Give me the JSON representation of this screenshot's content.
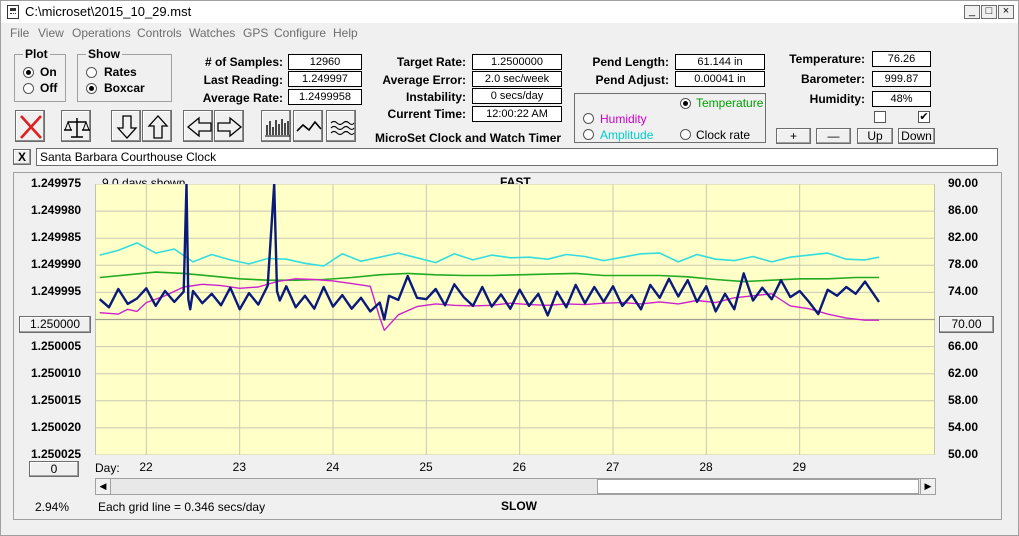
{
  "window": {
    "title": "C:\\microset\\2015_10_29.mst",
    "minimize": "_",
    "maximize": "□",
    "close": "×"
  },
  "menu": [
    "File",
    "View",
    "Operations",
    "Controls",
    "Watches",
    "GPS",
    "Configure",
    "Help"
  ],
  "plot_group": {
    "title": "Plot",
    "options": [
      {
        "label": "On",
        "selected": true
      },
      {
        "label": "Off",
        "selected": false
      }
    ]
  },
  "show_group": {
    "title": "Show",
    "options": [
      {
        "label": "Rates",
        "selected": false
      },
      {
        "label": "Boxcar",
        "selected": true
      }
    ]
  },
  "stats": {
    "samples_label": "# of Samples:",
    "samples": "12960",
    "last_reading_label": "Last Reading:",
    "last_reading": "1.249997",
    "average_rate_label": "Average Rate:",
    "average_rate": "1.2499958",
    "target_rate_label": "Target Rate:",
    "target_rate": "1.2500000",
    "average_error_label": "Average Error:",
    "average_error": "2.0 sec/week",
    "instability_label": "Instability:",
    "instability": "0 secs/day",
    "current_time_label": "Current Time:",
    "current_time": "12:00:22 AM",
    "pend_length_label": "Pend Length:",
    "pend_length": "61.144 in",
    "pend_adjust_label": "Pend Adjust:",
    "pend_adjust": "0.00041 in",
    "temperature_label": "Temperature:",
    "temperature": "76.26",
    "barometer_label": "Barometer:",
    "barometer": "999.87",
    "humidity_label": "Humidity:",
    "humidity": "48%"
  },
  "subtitle": "MicroSet Clock and Watch Timer",
  "series_select": {
    "temperature": {
      "label": "Temperature",
      "selected": true,
      "color": "#00a000"
    },
    "humidity": {
      "label": "Humidity",
      "selected": false,
      "color": "#cc00cc"
    },
    "amplitude": {
      "label": "Amplitude",
      "selected": false,
      "color": "#00cccc"
    },
    "clock_rate": {
      "label": "Clock rate",
      "selected": false,
      "color": "#000000"
    }
  },
  "scale_buttons": {
    "plus": "+",
    "minus": "—",
    "up": "Up",
    "down": "Down"
  },
  "checkboxes": [
    {
      "checked": false
    },
    {
      "checked": true
    }
  ],
  "clock_name_close": "X",
  "clock_name": "Santa Barbara Courthouse Clock",
  "chart_header": {
    "days_shown": "9.0 days shown",
    "fast": "FAST",
    "slow": "SLOW",
    "grid_note": "Each grid line = 0.346 secs/day",
    "percent": "2.94%",
    "day_label": "Day:"
  },
  "left_center_value": "1.250000",
  "right_center_value": "70.00",
  "bottom_left_value": "0",
  "chart_data": {
    "type": "line",
    "x_range": [
      21.45,
      30.45
    ],
    "x_ticks": [
      "22",
      "23",
      "24",
      "25",
      "26",
      "27",
      "28",
      "29"
    ],
    "x_tick_values": [
      22,
      23,
      24,
      25,
      26,
      27,
      28,
      29
    ],
    "y_left_ticks": [
      "1.249975",
      "1.249980",
      "1.249985",
      "1.249990",
      "1.249995",
      "1.250000",
      "1.250005",
      "1.250010",
      "1.250015",
      "1.250020",
      "1.250025"
    ],
    "y_left_range": [
      1.249975,
      1.250025
    ],
    "y_right_ticks": [
      "90.00",
      "86.00",
      "82.00",
      "78.00",
      "74.00",
      "70.00",
      "66.00",
      "62.00",
      "58.00",
      "54.00",
      "50.00"
    ],
    "y_right_range": [
      50,
      90
    ],
    "grid": true,
    "background": "#ffffc8",
    "series": [
      {
        "key": "amplitude",
        "color": "#33dddd",
        "axis": "right",
        "width": 1.6,
        "x": [
          21.5,
          21.7,
          21.9,
          22.1,
          22.3,
          22.5,
          22.7,
          22.9,
          23.1,
          23.3,
          23.5,
          23.7,
          23.9,
          24.1,
          24.3,
          24.5,
          24.7,
          24.9,
          25.1,
          25.3,
          25.5,
          25.7,
          25.9,
          26.1,
          26.3,
          26.5,
          26.7,
          26.9,
          27.1,
          27.3,
          27.5,
          27.7,
          27.9,
          28.1,
          28.3,
          28.5,
          28.7,
          28.9,
          29.1,
          29.3,
          29.5,
          29.7,
          29.85
        ],
        "y": [
          79.5,
          80.2,
          81.3,
          79.8,
          80.4,
          78.5,
          79.6,
          78.8,
          78.2,
          79.0,
          78.9,
          78.3,
          77.9,
          79.7,
          78.6,
          79.2,
          79.8,
          79.1,
          78.4,
          79.7,
          78.8,
          79.5,
          79.1,
          79.2,
          78.9,
          79.6,
          79.3,
          78.7,
          79.2,
          79.7,
          79.8,
          78.5,
          79.6,
          78.9,
          78.7,
          79.3,
          78.5,
          79.2,
          79.5,
          79.8,
          78.9,
          78.8,
          79.2
        ]
      },
      {
        "key": "temperature",
        "color": "#22aa22",
        "axis": "right",
        "width": 1.6,
        "x": [
          21.5,
          21.8,
          22.1,
          22.4,
          22.7,
          23.0,
          23.3,
          23.6,
          23.9,
          24.2,
          24.5,
          24.8,
          25.1,
          25.4,
          25.7,
          26.0,
          26.3,
          26.6,
          26.9,
          27.2,
          27.5,
          27.8,
          28.1,
          28.4,
          28.7,
          29.0,
          29.3,
          29.6,
          29.85
        ],
        "y": [
          76.2,
          76.6,
          77.0,
          76.8,
          76.4,
          76.0,
          75.8,
          75.8,
          75.9,
          76.2,
          76.6,
          76.8,
          76.6,
          76.5,
          76.5,
          76.6,
          76.7,
          76.8,
          76.5,
          76.5,
          76.5,
          76.3,
          75.9,
          75.6,
          75.8,
          76.0,
          76.0,
          76.2,
          76.2
        ]
      },
      {
        "key": "humidity",
        "color": "#cc22cc",
        "axis": "right",
        "width": 1.4,
        "x": [
          21.5,
          21.7,
          21.8,
          21.9,
          22.0,
          22.2,
          22.4,
          22.6,
          22.8,
          23.0,
          23.2,
          23.4,
          23.6,
          23.8,
          24.0,
          24.2,
          24.4,
          24.5,
          24.55,
          24.7,
          24.9,
          25.1,
          25.3,
          25.5,
          25.7,
          25.9,
          26.1,
          26.3,
          26.5,
          26.7,
          26.9,
          27.1,
          27.3,
          27.5,
          27.7,
          27.9,
          28.1,
          28.3,
          28.5,
          28.7,
          28.9,
          29.1,
          29.3,
          29.5,
          29.7,
          29.85
        ],
        "y": [
          71.0,
          70.8,
          71.5,
          71.2,
          72.5,
          73.5,
          74.8,
          75.2,
          75.0,
          74.6,
          74.8,
          75.6,
          76.0,
          75.9,
          75.7,
          75.3,
          74.9,
          70.3,
          68.4,
          70.7,
          71.9,
          72.3,
          72.1,
          72.0,
          72.1,
          72.4,
          72.2,
          72.1,
          72.3,
          72.2,
          72.4,
          72.5,
          72.3,
          72.6,
          72.3,
          72.8,
          72.5,
          73.2,
          73.5,
          73.8,
          72.0,
          71.6,
          70.8,
          70.2,
          69.9,
          69.9
        ]
      },
      {
        "key": "clock_rate",
        "color": "#0a1a7a",
        "axis": "right",
        "width": 2.4,
        "x": [
          21.5,
          21.6,
          21.7,
          21.8,
          21.9,
          22.0,
          22.1,
          22.2,
          22.3,
          22.4,
          22.43,
          22.45,
          22.47,
          22.5,
          22.6,
          22.7,
          22.8,
          22.9,
          23.0,
          23.1,
          23.2,
          23.3,
          23.37,
          23.4,
          23.43,
          23.5,
          23.6,
          23.7,
          23.8,
          23.9,
          24.0,
          24.1,
          24.2,
          24.3,
          24.4,
          24.5,
          24.55,
          24.6,
          24.7,
          24.8,
          24.9,
          25.0,
          25.1,
          25.2,
          25.3,
          25.4,
          25.5,
          25.6,
          25.7,
          25.8,
          25.9,
          26.0,
          26.1,
          26.2,
          26.3,
          26.4,
          26.5,
          26.6,
          26.7,
          26.8,
          26.9,
          27.0,
          27.1,
          27.2,
          27.3,
          27.4,
          27.5,
          27.6,
          27.7,
          27.8,
          27.9,
          28.0,
          28.1,
          28.2,
          28.3,
          28.4,
          28.5,
          28.6,
          28.7,
          28.8,
          28.9,
          29.0,
          29.1,
          29.2,
          29.3,
          29.4,
          29.5,
          29.6,
          29.7,
          29.85
        ],
        "y": [
          73.0,
          71.8,
          74.5,
          72.3,
          73.1,
          74.6,
          72.0,
          74.2,
          72.6,
          74.1,
          90.0,
          73.0,
          71.5,
          74.2,
          72.4,
          73.8,
          72.1,
          74.7,
          71.5,
          73.9,
          72.2,
          75.0,
          90.0,
          74.2,
          72.8,
          74.9,
          71.8,
          73.5,
          71.6,
          74.8,
          71.9,
          73.6,
          71.6,
          73.2,
          71.2,
          72.5,
          70.0,
          73.5,
          72.9,
          76.4,
          73.2,
          73.0,
          74.5,
          72.1,
          75.2,
          73.3,
          72.0,
          74.8,
          71.9,
          73.7,
          71.6,
          74.4,
          72.0,
          73.8,
          70.6,
          74.1,
          71.8,
          75.1,
          72.4,
          74.8,
          72.6,
          74.9,
          72.0,
          73.6,
          71.5,
          75.1,
          73.2,
          76.0,
          73.4,
          75.8,
          72.6,
          74.9,
          71.2,
          73.8,
          71.5,
          76.8,
          72.8,
          74.7,
          73.0,
          75.8,
          73.3,
          74.2,
          72.6,
          70.8,
          74.4,
          73.5,
          74.8,
          73.8,
          75.6,
          72.6
        ]
      }
    ]
  }
}
